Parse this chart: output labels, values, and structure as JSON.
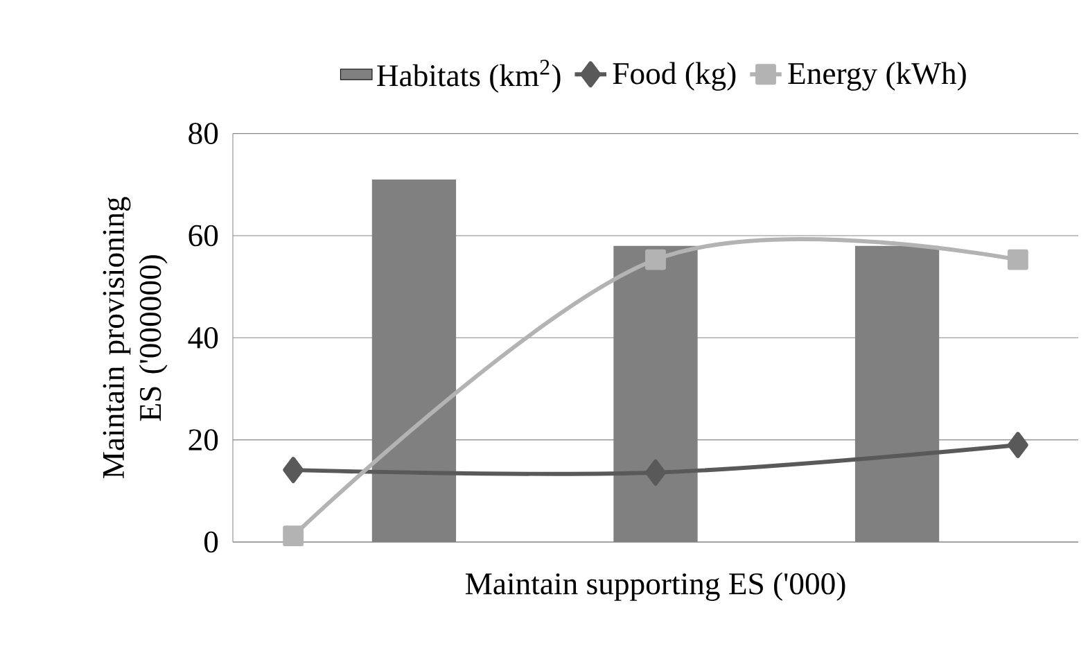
{
  "chart_data": {
    "type": "bar",
    "xlabel": "Maintain supporting ES ('000)",
    "ylabel": "Maintain provisioning ES ('000000)",
    "categories": [
      null,
      null,
      null,
      null,
      null,
      null,
      null
    ],
    "ylim": [
      0,
      80
    ],
    "yticks": [
      0,
      20,
      40,
      60,
      80
    ],
    "grid": "y",
    "legend": "top",
    "tick_labels": "y",
    "series": [
      {
        "name": "Habitats (km$^{2}$)",
        "color": "#808080",
        "values": [
          null,
          71,
          null,
          58,
          null,
          58,
          null
        ]
      },
      {
        "name": "Food (kg)",
        "type": "line",
        "color": "#595959",
        "marker": "diamond",
        "values": [
          14.1,
          null,
          null,
          13.6,
          null,
          null,
          19
        ]
      },
      {
        "name": "Energy (kWh)",
        "type": "line",
        "color": "#b3b3b3",
        "marker": "square",
        "values": [
          1.2,
          null,
          null,
          55.3,
          null,
          null,
          55.3
        ]
      }
    ]
  }
}
